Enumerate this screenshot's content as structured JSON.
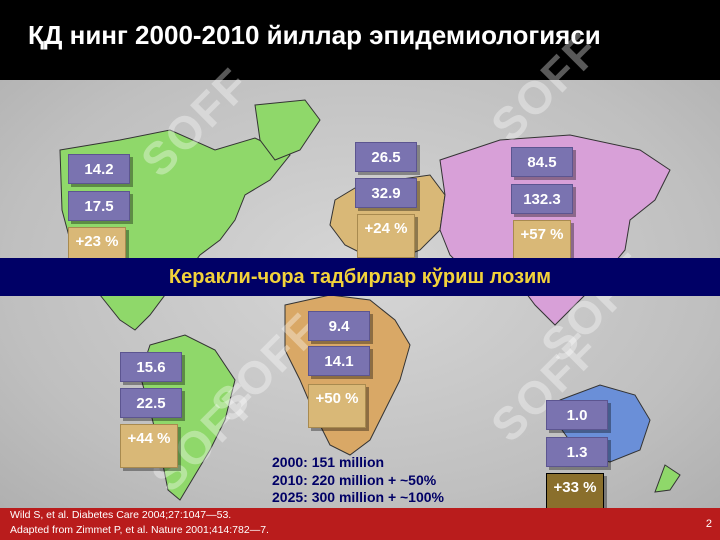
{
  "title": "ҚД нинг 2000-2010 йиллар эпидемиологияси",
  "regions": {
    "north_america": {
      "v2000": "14.2",
      "v2010": "17.5",
      "increase": "+23 %"
    },
    "europe": {
      "v2000": "26.5",
      "v2010": "32.9",
      "increase": "+24 %"
    },
    "asia": {
      "v2000": "84.5",
      "v2010": "132.3",
      "increase": "+57 %"
    },
    "africa": {
      "v2000": "9.4",
      "v2010": "14.1",
      "increase": "+50 %"
    },
    "south_america": {
      "v2000": "15.6",
      "v2010": "22.5",
      "increase": "+44 %"
    },
    "oceania": {
      "v2000": "1.0",
      "v2010": "1.3",
      "increase": "+33 %"
    }
  },
  "banner": "Керакли-чора тадбирлар кўриш лозим",
  "stats": {
    "line1": "2000: 151 million",
    "line2": "2010: 220 million + ~50%",
    "line3": "2025: 300 million + ~100%"
  },
  "citation": {
    "line1": "Wild S, et al. Diabetes Care 2004;27:1047—53.",
    "line2": "Adapted from Zimmet P, et al. Nature 2001;414:782—7."
  },
  "page_number": "2",
  "watermark": "SOFF",
  "colors": {
    "header": "#000000",
    "banner": "#000066",
    "banner_text": "#f2d23a",
    "footer": "#b91c1c",
    "box_purple": "#7a73b0",
    "box_tan": "#d9b877",
    "north_america": "#8fd86a",
    "europe": "#d9b877",
    "asia": "#d8a0d8",
    "africa": "#d9a866",
    "oceania": "#6a8fd8"
  }
}
